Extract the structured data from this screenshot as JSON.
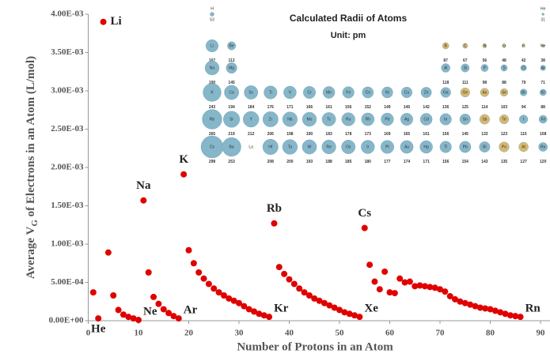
{
  "chart_data": {
    "type": "scatter",
    "xlabel": "Number of Protons in an Atom",
    "ylabel_parts": [
      "Average V",
      "G",
      " of Electrons in an Atom (L/mol)"
    ],
    "xlim": [
      0,
      90
    ],
    "xticks": [
      0,
      10,
      20,
      30,
      40,
      50,
      60,
      70,
      80,
      90
    ],
    "ylim": [
      0,
      0.004
    ],
    "yticks": [
      {
        "value": 0,
        "label": "0.00E+00"
      },
      {
        "value": 0.0005,
        "label": "5.00E-04"
      },
      {
        "value": 0.001,
        "label": "1.00E-03"
      },
      {
        "value": 0.0015,
        "label": "1.50E-03"
      },
      {
        "value": 0.002,
        "label": "2.00E-03"
      },
      {
        "value": 0.0025,
        "label": "2.50E-03"
      },
      {
        "value": 0.003,
        "label": "3.00E-03"
      },
      {
        "value": 0.0035,
        "label": "3.50E-03"
      },
      {
        "value": 0.004,
        "label": "4.00E-03"
      }
    ],
    "grid": false,
    "series": [
      {
        "color": "#e00000",
        "x": [
          1,
          2,
          3,
          4,
          5,
          6,
          7,
          8,
          9,
          10,
          11,
          12,
          13,
          14,
          15,
          16,
          17,
          18,
          19,
          20,
          21,
          22,
          23,
          24,
          25,
          26,
          27,
          28,
          29,
          30,
          31,
          32,
          33,
          34,
          35,
          36,
          37,
          38,
          39,
          40,
          41,
          42,
          43,
          44,
          45,
          46,
          47,
          48,
          49,
          50,
          51,
          52,
          53,
          54,
          55,
          56,
          57,
          58,
          59,
          60,
          61,
          62,
          63,
          64,
          65,
          66,
          67,
          68,
          69,
          70,
          71,
          72,
          73,
          74,
          75,
          76,
          77,
          78,
          79,
          80,
          81,
          82,
          83,
          84,
          85,
          86
        ],
        "values": [
          0.00037,
          3e-05,
          0.0039,
          0.00089,
          0.00033,
          0.00014,
          8e-05,
          5e-05,
          3e-05,
          1e-05,
          0.00157,
          0.00063,
          0.00031,
          0.00022,
          0.00015,
          0.0001,
          6e-05,
          3e-05,
          0.00191,
          0.00092,
          0.00075,
          0.00063,
          0.00055,
          0.00048,
          0.00042,
          0.00037,
          0.00033,
          0.00029,
          0.00026,
          0.00023,
          0.00019,
          0.00015,
          0.00012,
          9e-05,
          7e-05,
          5e-05,
          0.00127,
          0.0007,
          0.00061,
          0.00054,
          0.00048,
          0.00042,
          0.00037,
          0.00033,
          0.00029,
          0.00026,
          0.00023,
          0.0002,
          0.00017,
          0.00014,
          0.00011,
          9e-05,
          7e-05,
          5e-05,
          0.00121,
          0.00073,
          0.00051,
          0.00041,
          0.00064,
          0.00037,
          0.00036,
          0.00055,
          0.0005,
          0.00051,
          0.00045,
          0.00046,
          0.00045,
          0.00044,
          0.00043,
          0.00041,
          0.00038,
          0.00032,
          0.00028,
          0.00025,
          0.00023,
          0.00021,
          0.00019,
          0.00017,
          0.00016,
          0.00015,
          0.00013,
          0.00011,
          9e-05,
          7e-05,
          6e-05,
          5e-05
        ]
      }
    ],
    "annotations": [
      {
        "text": "Li",
        "x": 3,
        "position": "right"
      },
      {
        "text": "He",
        "x": 2,
        "position": "below"
      },
      {
        "text": "Ne",
        "x": 10,
        "position": "upper-right"
      },
      {
        "text": "Na",
        "x": 11,
        "position": "above"
      },
      {
        "text": "Ar",
        "x": 18,
        "position": "upper-right"
      },
      {
        "text": "K",
        "x": 19,
        "position": "above"
      },
      {
        "text": "Kr",
        "x": 36,
        "position": "upper-right"
      },
      {
        "text": "Rb",
        "x": 37,
        "position": "above"
      },
      {
        "text": "Xe",
        "x": 54,
        "position": "upper-right"
      },
      {
        "text": "Cs",
        "x": 55,
        "position": "above"
      },
      {
        "text": "Rn",
        "x": 86,
        "position": "upper-right"
      }
    ],
    "inset": {
      "title": "Calculated Radii of Atoms",
      "subtitle": "Unit:  pm",
      "color": "#86b6c9",
      "highlight_color": "#d8b96e",
      "rows": [
        [
          {
            "symbol": "H",
            "radius": 53
          },
          null,
          null,
          null,
          null,
          null,
          null,
          null,
          null,
          null,
          null,
          null,
          null,
          null,
          null,
          null,
          null,
          {
            "symbol": "He",
            "radius": 31
          }
        ],
        [
          {
            "symbol": "Li",
            "radius": 167
          },
          {
            "symbol": "Be",
            "radius": 112
          },
          null,
          null,
          null,
          null,
          null,
          null,
          null,
          null,
          null,
          null,
          {
            "symbol": "B",
            "radius": 87,
            "highlight": true
          },
          {
            "symbol": "C",
            "radius": 67,
            "highlight": true
          },
          {
            "symbol": "N",
            "radius": 56,
            "highlight": true
          },
          {
            "symbol": "O",
            "radius": 48,
            "highlight": true
          },
          {
            "symbol": "F",
            "radius": 42,
            "highlight": true
          },
          {
            "symbol": "Ne",
            "radius": 38,
            "highlight": true
          }
        ],
        [
          {
            "symbol": "Na",
            "radius": 190
          },
          {
            "symbol": "Mg",
            "radius": 145
          },
          null,
          null,
          null,
          null,
          null,
          null,
          null,
          null,
          null,
          null,
          {
            "symbol": "Al",
            "radius": 118
          },
          {
            "symbol": "Si",
            "radius": 111
          },
          {
            "symbol": "P",
            "radius": 98
          },
          {
            "symbol": "S",
            "radius": 88
          },
          {
            "symbol": "Cl",
            "radius": 79
          },
          {
            "symbol": "Ar",
            "radius": 71
          }
        ],
        [
          {
            "symbol": "K",
            "radius": 243
          },
          {
            "symbol": "Ca",
            "radius": 194
          },
          {
            "symbol": "Sc",
            "radius": 184
          },
          {
            "symbol": "Ti",
            "radius": 176
          },
          {
            "symbol": "V",
            "radius": 171
          },
          {
            "symbol": "Cr",
            "radius": 166
          },
          {
            "symbol": "Mn",
            "radius": 161
          },
          {
            "symbol": "Fe",
            "radius": 156
          },
          {
            "symbol": "Co",
            "radius": 152
          },
          {
            "symbol": "Ni",
            "radius": 149
          },
          {
            "symbol": "Cu",
            "radius": 145
          },
          {
            "symbol": "Zn",
            "radius": 142
          },
          {
            "symbol": "Ga",
            "radius": 136
          },
          {
            "symbol": "Ge",
            "radius": 125,
            "highlight": true
          },
          {
            "symbol": "As",
            "radius": 114,
            "highlight": true
          },
          {
            "symbol": "Se",
            "radius": 103,
            "highlight": true
          },
          {
            "symbol": "Br",
            "radius": 94
          },
          {
            "symbol": "Kr",
            "radius": 88
          }
        ],
        [
          {
            "symbol": "Rb",
            "radius": 265
          },
          {
            "symbol": "Sr",
            "radius": 219
          },
          {
            "symbol": "Y",
            "radius": 212
          },
          {
            "symbol": "Zr",
            "radius": 206
          },
          {
            "symbol": "Nb",
            "radius": 198
          },
          {
            "symbol": "Mo",
            "radius": 190
          },
          {
            "symbol": "Tc",
            "radius": 183
          },
          {
            "symbol": "Ru",
            "radius": 178
          },
          {
            "symbol": "Rh",
            "radius": 173
          },
          {
            "symbol": "Pd",
            "radius": 169
          },
          {
            "symbol": "Ag",
            "radius": 165
          },
          {
            "symbol": "Cd",
            "radius": 161
          },
          {
            "symbol": "In",
            "radius": 156
          },
          {
            "symbol": "Sn",
            "radius": 145
          },
          {
            "symbol": "Sb",
            "radius": 133,
            "highlight": true
          },
          {
            "symbol": "Te",
            "radius": 123,
            "highlight": true
          },
          {
            "symbol": "I",
            "radius": 115
          },
          {
            "symbol": "Xe",
            "radius": 108
          }
        ],
        [
          {
            "symbol": "Cs",
            "radius": 298
          },
          {
            "symbol": "Ba",
            "radius": 253
          },
          {
            "symbol": "La",
            "radius": null
          },
          {
            "symbol": "Hf",
            "radius": 208
          },
          {
            "symbol": "Ta",
            "radius": 200
          },
          {
            "symbol": "W",
            "radius": 193
          },
          {
            "symbol": "Re",
            "radius": 188
          },
          {
            "symbol": "Os",
            "radius": 185
          },
          {
            "symbol": "Ir",
            "radius": 180
          },
          {
            "symbol": "Pt",
            "radius": 177
          },
          {
            "symbol": "Au",
            "radius": 174
          },
          {
            "symbol": "Hg",
            "radius": 171
          },
          {
            "symbol": "Tl",
            "radius": 156
          },
          {
            "symbol": "Pb",
            "radius": 154
          },
          {
            "symbol": "Bi",
            "radius": 143
          },
          {
            "symbol": "Po",
            "radius": 135,
            "highlight": true
          },
          {
            "symbol": "At",
            "radius": 127,
            "highlight": true
          },
          {
            "symbol": "Rn",
            "radius": 120
          }
        ]
      ]
    }
  }
}
